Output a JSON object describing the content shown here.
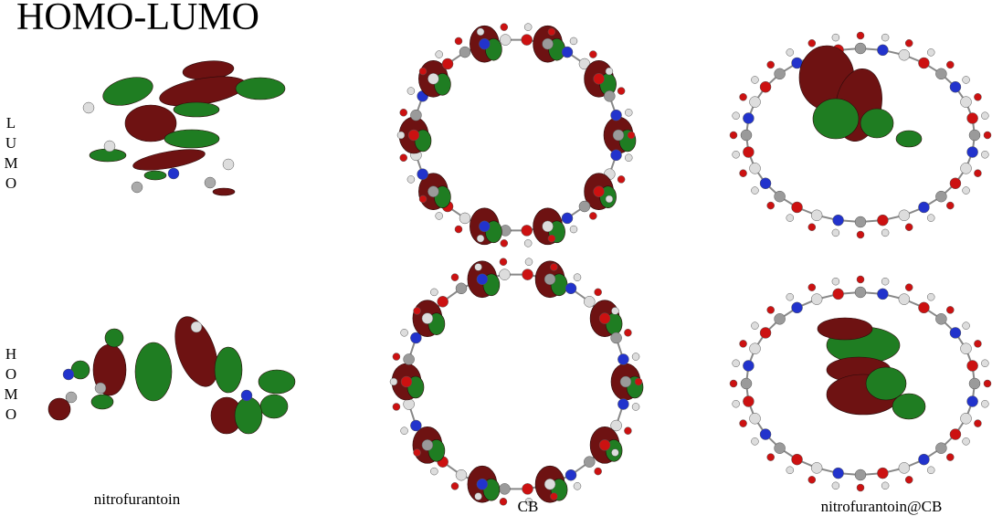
{
  "title": "HOMO-LUMO",
  "rows": [
    {
      "letters": [
        "L",
        "U",
        "M",
        "O"
      ]
    },
    {
      "letters": [
        "H",
        "O",
        "M",
        "O"
      ]
    }
  ],
  "captions": [
    "nitrofurantoin",
    "CB",
    "nitrofurantoin@CB"
  ]
}
